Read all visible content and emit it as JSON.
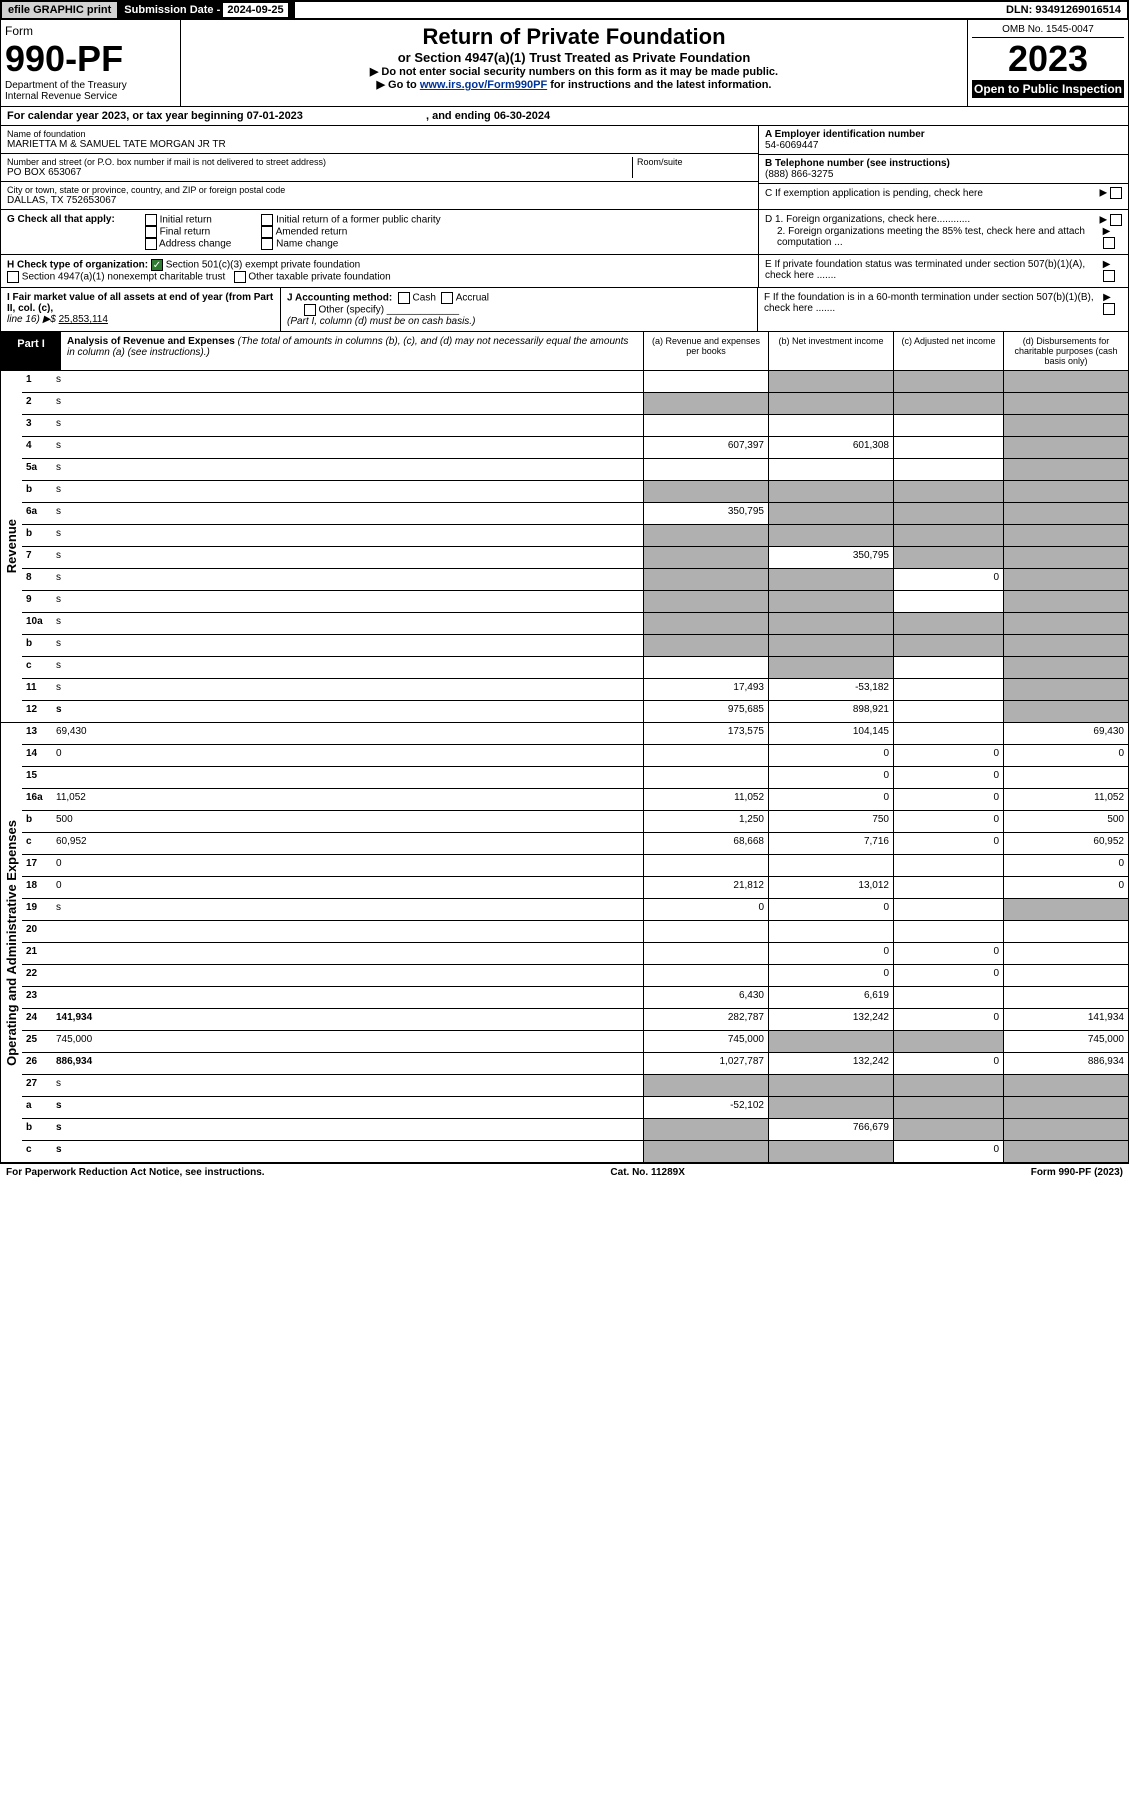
{
  "top": {
    "efile": "efile GRAPHIC print",
    "sub_label": "Submission Date - ",
    "sub_date": "2024-09-25",
    "dln": "DLN: 93491269016514"
  },
  "header": {
    "form_word": "Form",
    "form_num": "990-PF",
    "dept": "Department of the Treasury",
    "irs": "Internal Revenue Service",
    "title": "Return of Private Foundation",
    "subtitle": "or Section 4947(a)(1) Trust Treated as Private Foundation",
    "instr1": "▶ Do not enter social security numbers on this form as it may be made public.",
    "instr2_pre": "▶ Go to ",
    "instr2_link": "www.irs.gov/Form990PF",
    "instr2_post": " for instructions and the latest information.",
    "omb": "OMB No. 1545-0047",
    "year": "2023",
    "open": "Open to Public Inspection"
  },
  "cal_year": {
    "text": "For calendar year 2023, or tax year beginning 07-01-2023",
    "end": ", and ending 06-30-2024"
  },
  "foundation": {
    "name_label": "Name of foundation",
    "name": "MARIETTA M & SAMUEL TATE MORGAN JR TR",
    "addr_label": "Number and street (or P.O. box number if mail is not delivered to street address)",
    "addr": "PO BOX 653067",
    "room_label": "Room/suite",
    "city_label": "City or town, state or province, country, and ZIP or foreign postal code",
    "city": "DALLAS, TX  752653067",
    "ein_label": "A Employer identification number",
    "ein": "54-6069447",
    "phone_label": "B Telephone number (see instructions)",
    "phone": "(888) 866-3275",
    "c_label": "C If exemption application is pending, check here",
    "d1": "D 1. Foreign organizations, check here............",
    "d2": "2. Foreign organizations meeting the 85% test, check here and attach computation ...",
    "e_label": "E  If private foundation status was terminated under section 507(b)(1)(A), check here .......",
    "f_label": "F  If the foundation is in a 60-month termination under section 507(b)(1)(B), check here .......",
    "g_label": "G Check all that apply:",
    "g_opts": [
      "Initial return",
      "Final return",
      "Address change",
      "Initial return of a former public charity",
      "Amended return",
      "Name change"
    ],
    "h_label": "H Check type of organization:",
    "h_501": "Section 501(c)(3) exempt private foundation",
    "h_4947": "Section 4947(a)(1) nonexempt charitable trust",
    "h_other": "Other taxable private foundation",
    "i_label": "I Fair market value of all assets at end of year (from Part II, col. (c),",
    "i_line": "line 16) ▶$ ",
    "i_val": "25,853,114",
    "j_label": "J Accounting method:",
    "j_cash": "Cash",
    "j_accrual": "Accrual",
    "j_other": "Other (specify)",
    "j_note": "(Part I, column (d) must be on cash basis.)"
  },
  "part1": {
    "label": "Part I",
    "title": "Analysis of Revenue and Expenses",
    "note": " (The total of amounts in columns (b), (c), and (d) may not necessarily equal the amounts in column (a) (see instructions).)",
    "col_a": "(a)    Revenue and expenses per books",
    "col_b": "(b)    Net investment income",
    "col_c": "(c)   Adjusted net income",
    "col_d": "(d)   Disbursements for charitable purposes (cash basis only)"
  },
  "sections": {
    "revenue": "Revenue",
    "expenses": "Operating and Administrative Expenses"
  },
  "rows": [
    {
      "n": "1",
      "d": "s",
      "a": "",
      "b": "s",
      "c": "s"
    },
    {
      "n": "2",
      "d": "s",
      "a": "s",
      "b": "s",
      "c": "s"
    },
    {
      "n": "3",
      "d": "s",
      "a": "",
      "b": "",
      "c": ""
    },
    {
      "n": "4",
      "d": "s",
      "a": "607,397",
      "b": "601,308",
      "c": ""
    },
    {
      "n": "5a",
      "d": "s",
      "a": "",
      "b": "",
      "c": ""
    },
    {
      "n": "b",
      "d": "s",
      "a": "s",
      "b": "s",
      "c": "s"
    },
    {
      "n": "6a",
      "d": "s",
      "a": "350,795",
      "b": "s",
      "c": "s"
    },
    {
      "n": "b",
      "d": "s",
      "a": "s",
      "b": "s",
      "c": "s"
    },
    {
      "n": "7",
      "d": "s",
      "a": "s",
      "b": "350,795",
      "c": "s"
    },
    {
      "n": "8",
      "d": "s",
      "a": "s",
      "b": "s",
      "c": "0"
    },
    {
      "n": "9",
      "d": "s",
      "a": "s",
      "b": "s",
      "c": ""
    },
    {
      "n": "10a",
      "d": "s",
      "a": "s",
      "b": "s",
      "c": "s"
    },
    {
      "n": "b",
      "d": "s",
      "a": "s",
      "b": "s",
      "c": "s"
    },
    {
      "n": "c",
      "d": "s",
      "a": "",
      "b": "s",
      "c": ""
    },
    {
      "n": "11",
      "d": "s",
      "a": "17,493",
      "b": "-53,182",
      "c": ""
    },
    {
      "n": "12",
      "d": "s",
      "a": "975,685",
      "b": "898,921",
      "c": "",
      "bold": true
    }
  ],
  "exp_rows": [
    {
      "n": "13",
      "d": "69,430",
      "a": "173,575",
      "b": "104,145",
      "c": ""
    },
    {
      "n": "14",
      "d": "0",
      "a": "",
      "b": "0",
      "c": "0"
    },
    {
      "n": "15",
      "d": "",
      "a": "",
      "b": "0",
      "c": "0"
    },
    {
      "n": "16a",
      "d": "11,052",
      "a": "11,052",
      "b": "0",
      "c": "0"
    },
    {
      "n": "b",
      "d": "500",
      "a": "1,250",
      "b": "750",
      "c": "0"
    },
    {
      "n": "c",
      "d": "60,952",
      "a": "68,668",
      "b": "7,716",
      "c": "0"
    },
    {
      "n": "17",
      "d": "0",
      "a": "",
      "b": "",
      "c": ""
    },
    {
      "n": "18",
      "d": "0",
      "a": "21,812",
      "b": "13,012",
      "c": ""
    },
    {
      "n": "19",
      "d": "s",
      "a": "0",
      "b": "0",
      "c": ""
    },
    {
      "n": "20",
      "d": "",
      "a": "",
      "b": "",
      "c": ""
    },
    {
      "n": "21",
      "d": "",
      "a": "",
      "b": "0",
      "c": "0"
    },
    {
      "n": "22",
      "d": "",
      "a": "",
      "b": "0",
      "c": "0"
    },
    {
      "n": "23",
      "d": "",
      "a": "6,430",
      "b": "6,619",
      "c": ""
    },
    {
      "n": "24",
      "d": "141,934",
      "a": "282,787",
      "b": "132,242",
      "c": "0",
      "bold": true
    },
    {
      "n": "25",
      "d": "745,000",
      "a": "745,000",
      "b": "s",
      "c": "s"
    },
    {
      "n": "26",
      "d": "886,934",
      "a": "1,027,787",
      "b": "132,242",
      "c": "0",
      "bold": true
    },
    {
      "n": "27",
      "d": "s",
      "a": "s",
      "b": "s",
      "c": "s"
    },
    {
      "n": "a",
      "d": "s",
      "a": "-52,102",
      "b": "s",
      "c": "s",
      "bold": true
    },
    {
      "n": "b",
      "d": "s",
      "a": "s",
      "b": "766,679",
      "c": "s",
      "bold": true
    },
    {
      "n": "c",
      "d": "s",
      "a": "s",
      "b": "s",
      "c": "0",
      "bold": true
    }
  ],
  "footer": {
    "left": "For Paperwork Reduction Act Notice, see instructions.",
    "center": "Cat. No. 11289X",
    "right": "Form 990-PF (2023)"
  },
  "colors": {
    "shaded": "#b0b0b0",
    "link": "#003399",
    "check": "#2e7d32"
  }
}
